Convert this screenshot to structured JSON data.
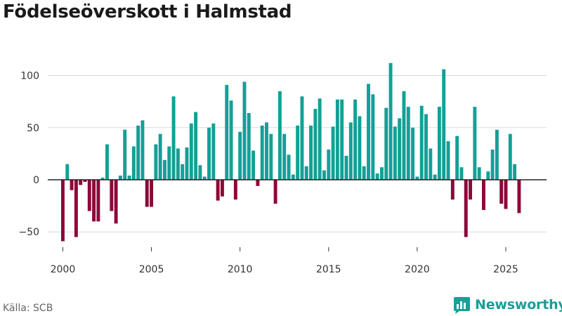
{
  "title": "Födelseöverskott i Halmstad",
  "source": "Källa: SCB",
  "brand": "Newsworthy",
  "colors": {
    "positive": "#13a096",
    "negative": "#8c0838",
    "grid": "#d9d9d9",
    "zero_line": "#222222"
  },
  "chart_data": {
    "type": "bar",
    "title": "Födelseöverskott i Halmstad",
    "xlabel": "",
    "ylabel": "",
    "x_ticks": [
      2000,
      2005,
      2010,
      2015,
      2020,
      2025
    ],
    "y_ticks": [
      -50,
      0,
      50,
      100
    ],
    "xlim": [
      1999.15,
      2027.3
    ],
    "ylim": [
      -62,
      128
    ],
    "grid": true,
    "start_year": 2000,
    "periods_per_year": 4,
    "values": [
      -59,
      15,
      -10,
      -55,
      -5,
      -2,
      -30,
      -40,
      -40,
      2,
      34,
      -30,
      -42,
      4,
      48,
      4,
      32,
      52,
      57,
      -26,
      -26,
      34,
      44,
      19,
      32,
      80,
      30,
      15,
      31,
      54,
      65,
      14,
      3,
      50,
      54,
      -20,
      -16,
      91,
      76,
      -19,
      46,
      94,
      64,
      28,
      -6,
      52,
      55,
      44,
      -23,
      85,
      44,
      24,
      5,
      52,
      80,
      13,
      52,
      68,
      78,
      9,
      29,
      51,
      77,
      77,
      23,
      55,
      77,
      61,
      13,
      92,
      82,
      6,
      12,
      69,
      112,
      51,
      59,
      85,
      70,
      50,
      3,
      71,
      63,
      30,
      5,
      70,
      106,
      37,
      -19,
      42,
      12,
      -55,
      -19,
      70,
      12,
      -29,
      8,
      29,
      48,
      -23,
      -28,
      44,
      15,
      -32
    ]
  }
}
